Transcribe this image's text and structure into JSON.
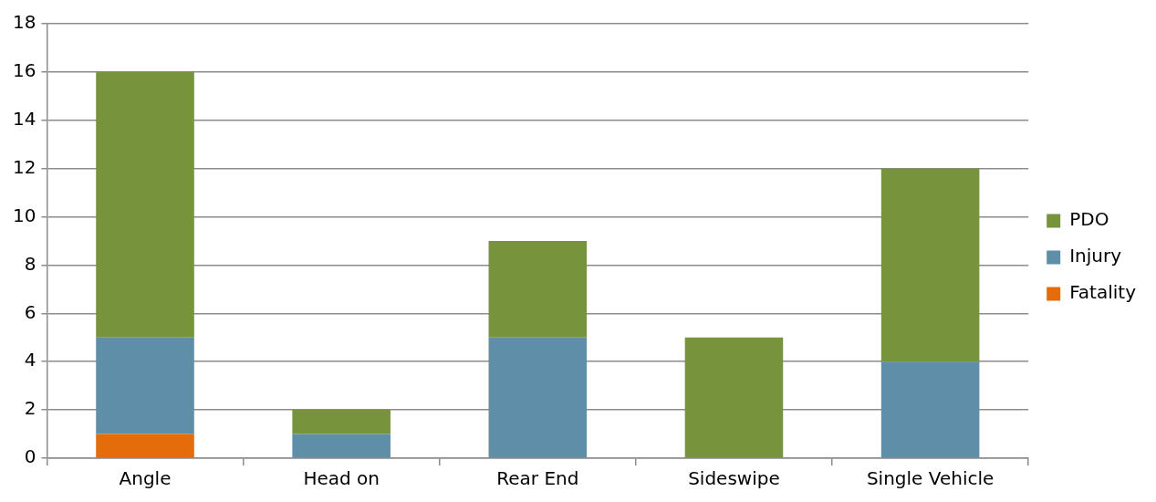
{
  "chart_data": {
    "type": "bar",
    "stacked": true,
    "categories": [
      "Angle",
      "Head on",
      "Rear End",
      "Sideswipe",
      "Single Vehicle"
    ],
    "series": [
      {
        "name": "Fatality",
        "color": "#e46c0a",
        "values": [
          1,
          0,
          0,
          0,
          0
        ]
      },
      {
        "name": "Injury",
        "color": "#5f8ea8",
        "values": [
          4,
          1,
          5,
          0,
          4
        ]
      },
      {
        "name": "PDO",
        "color": "#77933c",
        "values": [
          11,
          1,
          4,
          5,
          8
        ]
      }
    ],
    "ylim": [
      0,
      18
    ],
    "yticks": [
      0,
      2,
      4,
      6,
      8,
      10,
      12,
      14,
      16,
      18
    ],
    "grid": "y",
    "legend": "right"
  }
}
